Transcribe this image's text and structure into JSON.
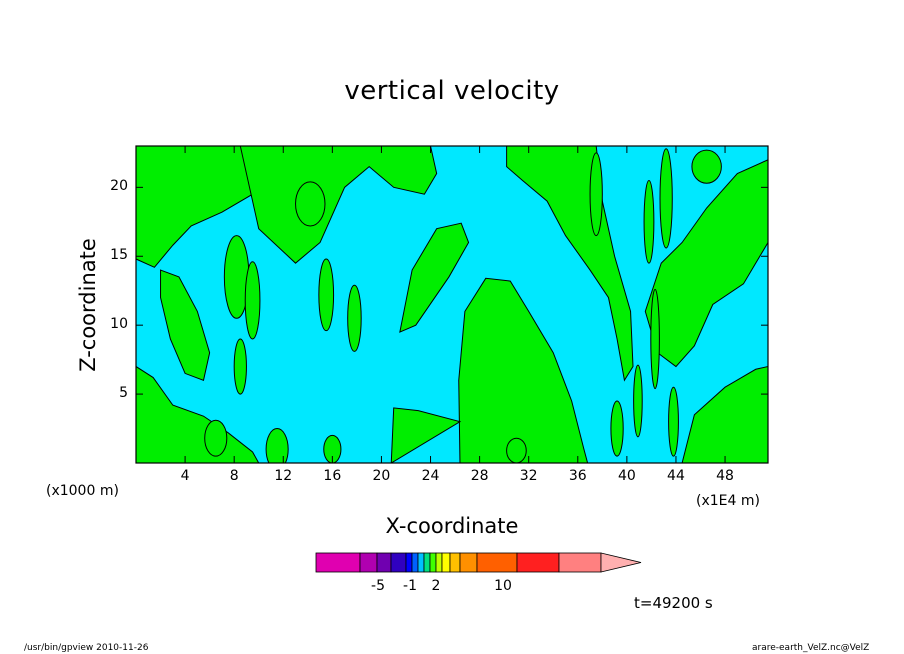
{
  "chart_data": {
    "type": "heatmap",
    "title": "vertical velocity",
    "xlabel": "X-coordinate",
    "ylabel": "Z-coordinate",
    "x_unit_left": "(x1000 m)",
    "x_unit_right": "(x1E4 m)",
    "xlim": [
      0,
      51.5
    ],
    "ylim": [
      0,
      23
    ],
    "x_ticks": [
      "4",
      "8",
      "12",
      "16",
      "20",
      "24",
      "28",
      "32",
      "36",
      "40",
      "44",
      "48"
    ],
    "y_ticks": [
      "5",
      "10",
      "15",
      "20"
    ],
    "colorbar": {
      "tick_labels": [
        "-5",
        "-1",
        "2",
        "10"
      ],
      "colors": [
        "#e000b0",
        "#b000b0",
        "#7000b0",
        "#3000c0",
        "#0000ff",
        "#0060ff",
        "#00c0ff",
        "#00e080",
        "#40ff00",
        "#c0ff00",
        "#ffff00",
        "#ffc000",
        "#ff9000",
        "#ff6000",
        "#ff2020",
        "#ff8080",
        "#ffb0b0"
      ]
    },
    "field_colors": {
      "negative": "#00e8ff",
      "positive": "#00ee00",
      "contour": "#000000"
    },
    "time_label": "t=49200 s"
  },
  "footer": {
    "left": "/usr/bin/gpview   2010-11-26",
    "right": "arare-earth_VelZ.nc@VelZ"
  }
}
